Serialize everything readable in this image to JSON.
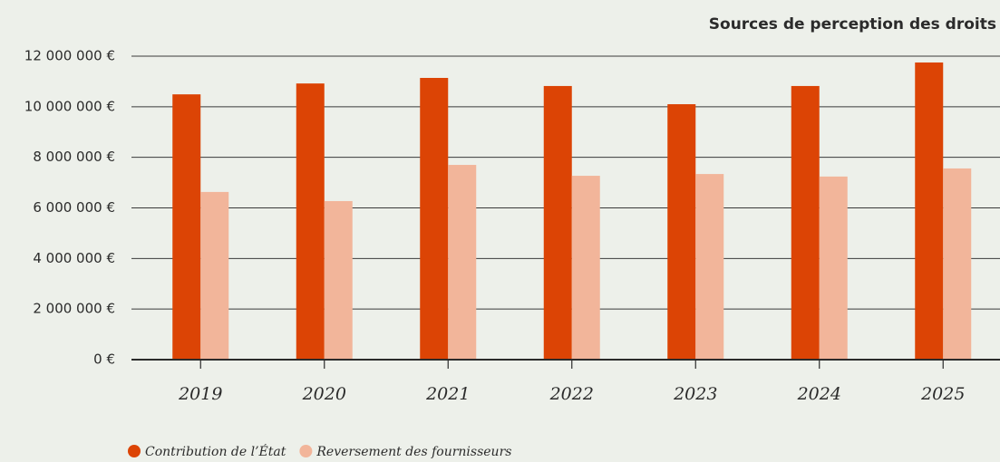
{
  "chart_data": {
    "type": "bar",
    "title": "Sources de perception des droits",
    "categories": [
      "2019",
      "2020",
      "2021",
      "2022",
      "2023",
      "2024",
      "2025"
    ],
    "series": [
      {
        "name": "Contribution de l’État",
        "color": "#dc4405",
        "values": [
          10490000,
          10920000,
          11140000,
          10820000,
          10100000,
          10820000,
          11750000
        ]
      },
      {
        "name": "Reversement des fournisseurs",
        "color": "#f2b59a",
        "values": [
          6630000,
          6270000,
          7700000,
          7270000,
          7340000,
          7240000,
          7560000
        ]
      }
    ],
    "ylim": [
      0,
      12000000
    ],
    "yticks": [
      {
        "value": 0,
        "label": "0 €"
      },
      {
        "value": 2000000,
        "label": "2 000 000 €"
      },
      {
        "value": 4000000,
        "label": "4 000 000 €"
      },
      {
        "value": 6000000,
        "label": "6 000 000 €"
      },
      {
        "value": 8000000,
        "label": "8 000 000 €"
      },
      {
        "value": 10000000,
        "label": "10 000 000 €"
      },
      {
        "value": 12000000,
        "label": "12 000 000 €"
      }
    ],
    "grid": true,
    "legend": "bottom-left"
  }
}
